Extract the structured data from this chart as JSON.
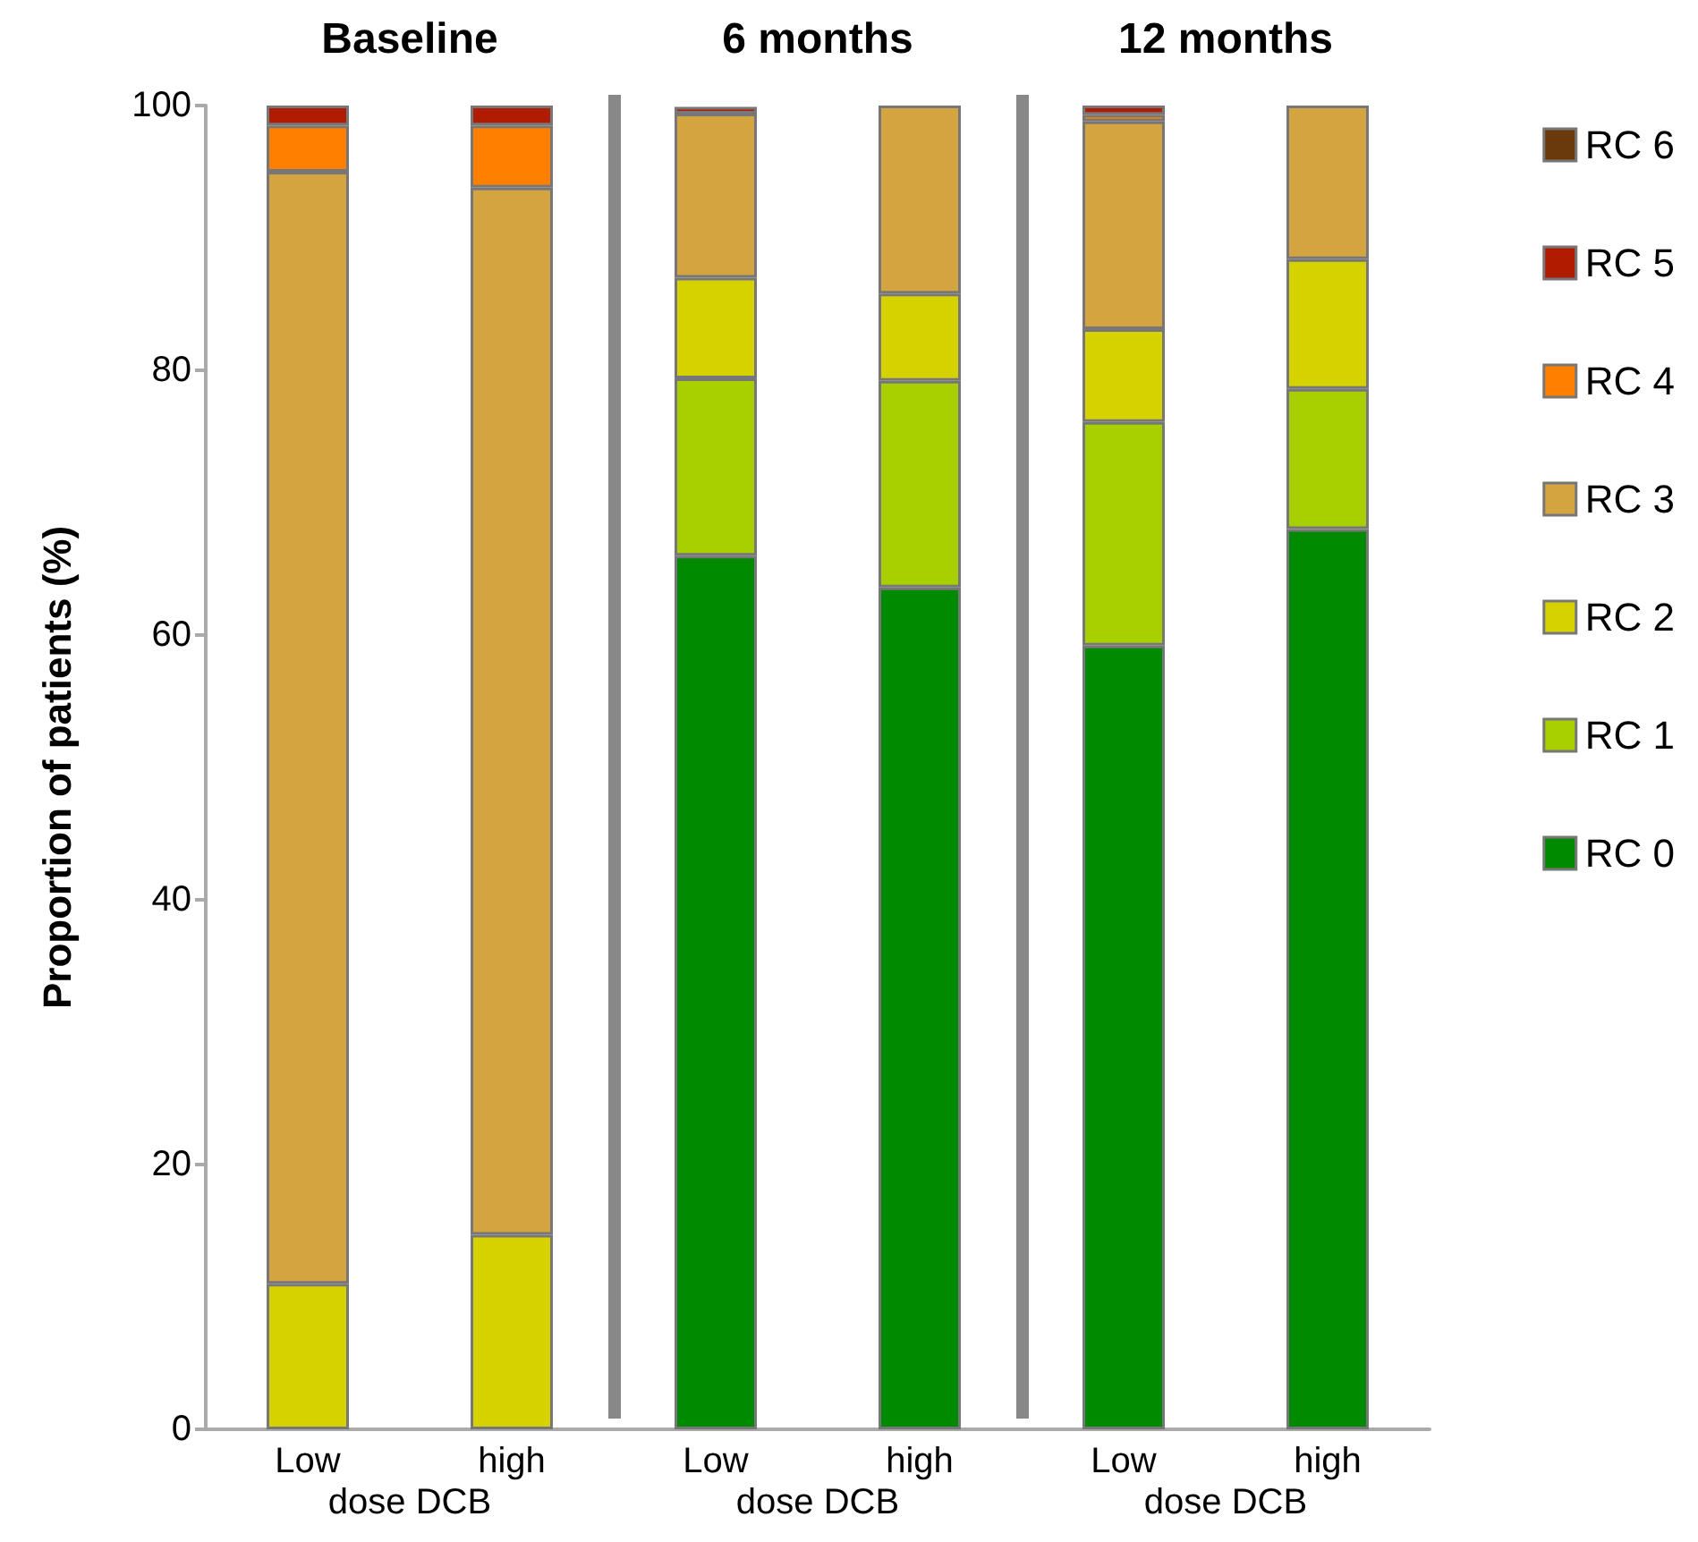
{
  "chart_data": {
    "type": "bar",
    "stacked": true,
    "ylabel": "Proportion of patients (%)",
    "categories": [
      "Low",
      "high",
      "Low",
      "high",
      "Low",
      "high"
    ],
    "series": [
      {
        "name": "RC 0",
        "color": "#008a00",
        "values": [
          null,
          null,
          66,
          63.6,
          59.2,
          68
        ]
      },
      {
        "name": "RC 1",
        "color": "#a8d000",
        "values": [
          null,
          null,
          13.4,
          15.6,
          16.9,
          10.6
        ]
      },
      {
        "name": "RC 2",
        "color": "#d6d200",
        "values": [
          11,
          14.7,
          7.6,
          6.6,
          7,
          9.8
        ]
      },
      {
        "name": "RC 3",
        "color": "#d4a440",
        "values": [
          84,
          79.1,
          12.4,
          14.2,
          15.7,
          11.6
        ]
      },
      {
        "name": "RC 4",
        "color": "#ff7f00",
        "values": [
          3.5,
          4.7,
          null,
          null,
          0.5,
          null
        ]
      },
      {
        "name": "RC 5",
        "color": "#b01c00",
        "values": [
          1.5,
          1.5,
          0.5,
          null,
          0.7,
          null
        ]
      },
      {
        "name": "RC 6",
        "color": "#6b3a0c",
        "values": [
          null,
          null,
          null,
          null,
          null,
          null
        ]
      }
    ],
    "ylim": [
      0,
      100
    ],
    "yticks": [
      0,
      20,
      40,
      60,
      80,
      100
    ],
    "grid": false,
    "legend": "right",
    "annotations": [
      "Baseline",
      "6 months",
      "12 months",
      "dose DCB",
      "dose DCB",
      "dose DCB"
    ]
  }
}
